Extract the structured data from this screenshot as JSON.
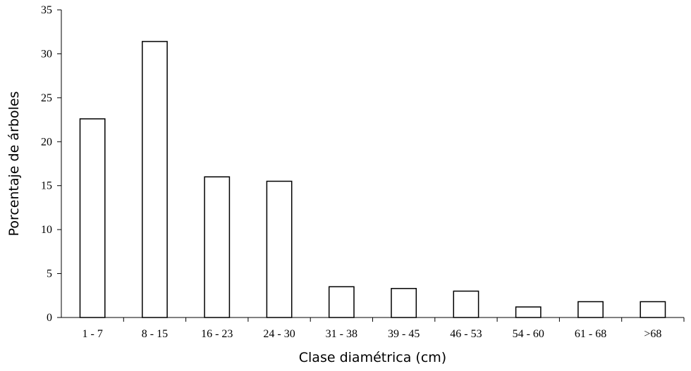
{
  "chart_data": {
    "type": "bar",
    "title": "",
    "xlabel": "Clase diamétrica (cm)",
    "ylabel": "Porcentaje de árboles",
    "categories": [
      "1 - 7",
      "8 - 15",
      "16 - 23",
      "24 - 30",
      "31 - 38",
      "39 - 45",
      "46 - 53",
      "54 - 60",
      "61 - 68",
      ">68"
    ],
    "values": [
      22.6,
      31.4,
      16.0,
      15.5,
      3.5,
      3.3,
      3.0,
      1.2,
      1.8,
      1.8
    ],
    "ylim": [
      0,
      35
    ],
    "yticks": [
      0,
      5,
      10,
      15,
      20,
      25,
      30,
      35
    ],
    "grid": false,
    "legend": "none",
    "bar_fill": "#ffffff",
    "bar_stroke": "#000000"
  }
}
